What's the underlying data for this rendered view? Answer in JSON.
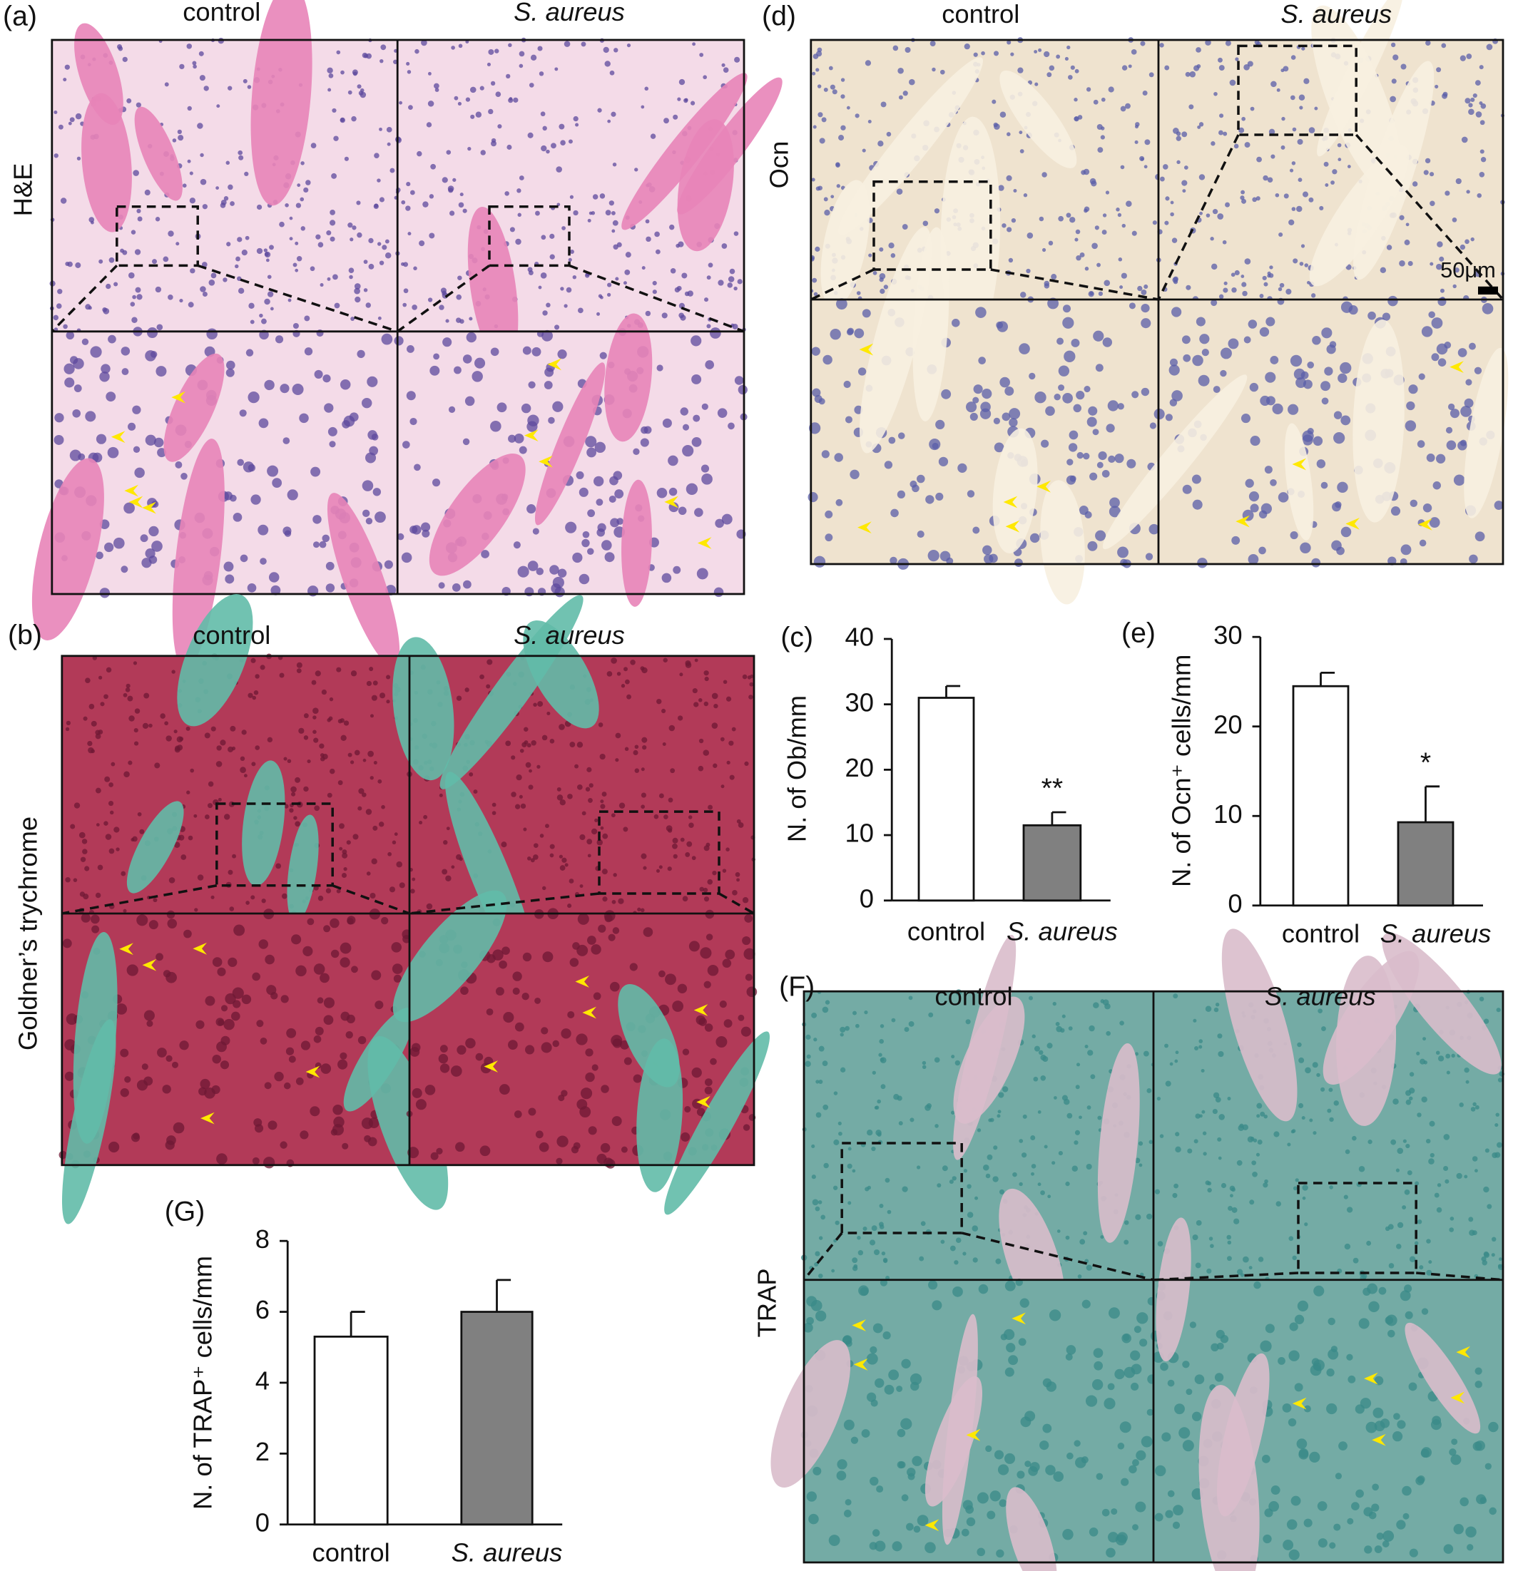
{
  "panels": [
    {
      "label": "(a)",
      "row_label": "H&E",
      "columns": [
        "control",
        "S. aureus"
      ]
    },
    {
      "label": "(d)",
      "row_label": "Ocn",
      "columns": [
        "control",
        "S. aureus"
      ],
      "scale_bar": "50μm"
    },
    {
      "label": "(b)",
      "row_label": "Goldner’s trychrome",
      "columns": [
        "control",
        "S. aureus"
      ]
    },
    {
      "label": "(F)",
      "row_label": "TRAP",
      "columns": [
        "control",
        "S. aureus"
      ]
    }
  ],
  "chart_data": [
    {
      "type": "bar",
      "label": "(c)",
      "y_label": "N. of Ob/mm",
      "categories": [
        "control",
        "S. aureus"
      ],
      "categories_italic": [
        false,
        true
      ],
      "values": [
        31,
        11.5
      ],
      "errors": [
        1.8,
        2
      ],
      "colors": [
        "#ffffff",
        "#808080"
      ],
      "ylim": [
        0,
        40
      ],
      "yticks": [
        0,
        10,
        20,
        30,
        40
      ],
      "annotations": [
        {
          "category": "S. aureus",
          "text": "**"
        }
      ]
    },
    {
      "type": "bar",
      "label": "(e)",
      "y_label": "N. of Ocn⁺ cells/mm",
      "categories": [
        "control",
        "S. aureus"
      ],
      "categories_italic": [
        false,
        true
      ],
      "values": [
        24.5,
        9.3
      ],
      "errors": [
        1.5,
        4
      ],
      "colors": [
        "#ffffff",
        "#808080"
      ],
      "ylim": [
        0,
        30
      ],
      "yticks": [
        0,
        10,
        20,
        30
      ],
      "annotations": [
        {
          "category": "S. aureus",
          "text": "*"
        }
      ]
    },
    {
      "type": "bar",
      "label": "(G)",
      "y_label": "N. of TRAP⁺ cells/mm",
      "categories": [
        "control",
        "S. aureus"
      ],
      "categories_italic": [
        false,
        true
      ],
      "values": [
        5.3,
        6
      ],
      "errors": [
        0.7,
        0.9
      ],
      "colors": [
        "#ffffff",
        "#808080"
      ],
      "ylim": [
        0,
        8
      ],
      "yticks": [
        0,
        2,
        4,
        6,
        8
      ]
    }
  ]
}
